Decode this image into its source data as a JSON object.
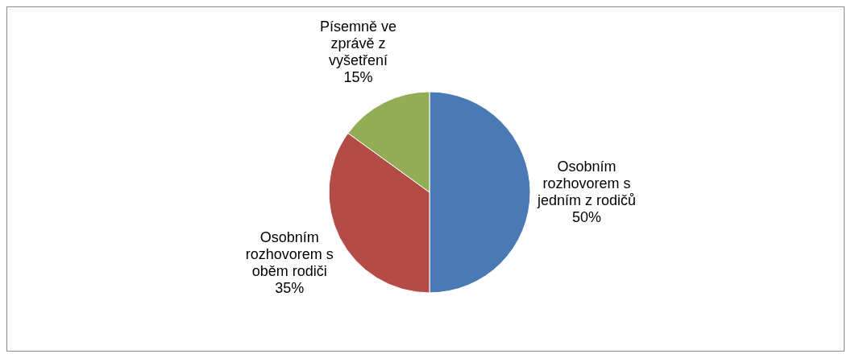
{
  "chart_data": {
    "type": "pie",
    "categories": [
      "Osobním rozhovorem s jedním z rodičů",
      "Osobním rozhovorem s oběm rodiči",
      "Písemně ve zprávě z vyšetření"
    ],
    "values": [
      50,
      35,
      15
    ],
    "colors": [
      "#4a7ab4",
      "#b34b47",
      "#93ad55"
    ],
    "value_labels": [
      "50%",
      "35%",
      "15%"
    ],
    "legend": false
  }
}
